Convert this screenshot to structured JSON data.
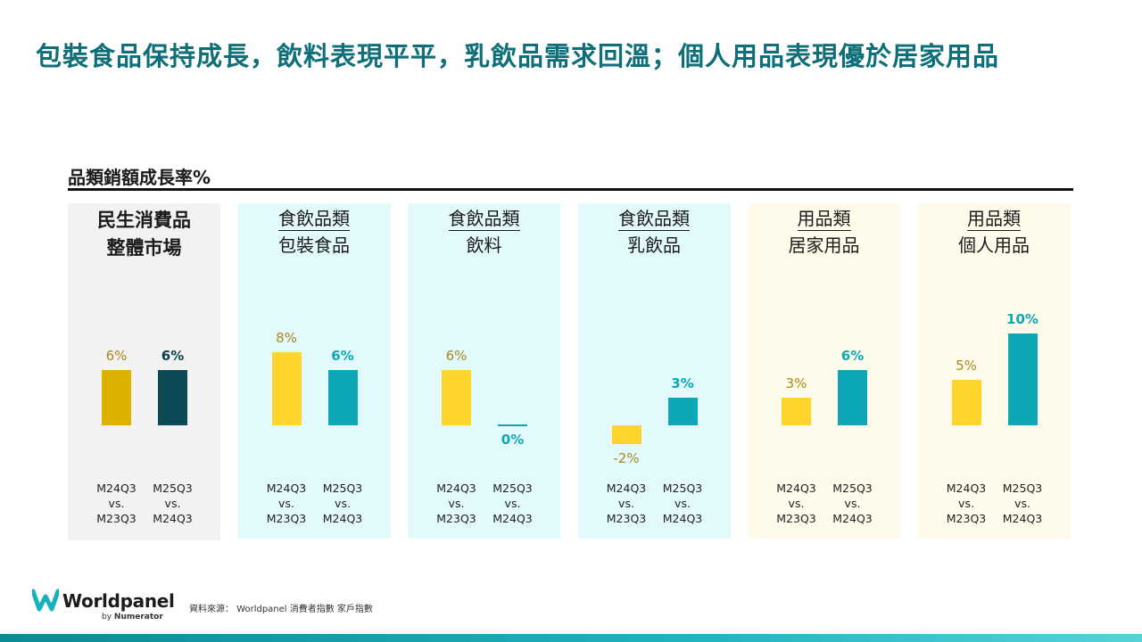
{
  "page": {
    "title": "包裝食品保持成長，飲料表現平平，乳飲品需求回溫；個人用品表現優於居家用品",
    "section_label": "品類銷額成長率%",
    "source_note": "資料來源： Worldpanel 消費者指數 家戶指數"
  },
  "logo": {
    "name": "Worldpanel",
    "by_prefix": "by",
    "by_brand": "Numerator"
  },
  "chart_data": {
    "type": "bar",
    "title": "品類銷額成長率%",
    "unit": "%",
    "x_labels": [
      [
        "M24Q3",
        "vs.",
        "M23Q3"
      ],
      [
        "M25Q3",
        "vs.",
        "M24Q3"
      ]
    ],
    "series_periods": [
      "M24Q3 vs. M23Q3",
      "M25Q3 vs. M24Q3"
    ],
    "panels": [
      {
        "header_line1": "民生消費品",
        "header_line2": "整體市場",
        "underline": false,
        "background": "#f2f2f2",
        "colors": [
          "#deb000",
          "#0c4a57"
        ],
        "label_colors": [
          "#a9871c",
          "#0c3f4a"
        ],
        "values": [
          6,
          6
        ],
        "value_labels": [
          "6%",
          "6%"
        ]
      },
      {
        "header_line1": "食飲品類",
        "header_line2": "包裝食品",
        "underline": true,
        "background": "#e2fafb",
        "colors": [
          "#ffd52b",
          "#0ea7b5"
        ],
        "label_colors": [
          "#a9871c",
          "#0ea7b5"
        ],
        "values": [
          8,
          6
        ],
        "value_labels": [
          "8%",
          "6%"
        ]
      },
      {
        "header_line1": "食飲品類",
        "header_line2": "飲料",
        "underline": true,
        "background": "#e2fafb",
        "colors": [
          "#ffd52b",
          "#0ea7b5"
        ],
        "label_colors": [
          "#a9871c",
          "#0ea7b5"
        ],
        "values": [
          6,
          0
        ],
        "value_labels": [
          "6%",
          "0%"
        ]
      },
      {
        "header_line1": "食飲品類",
        "header_line2": "乳飲品",
        "underline": true,
        "background": "#e2fafb",
        "colors": [
          "#ffd52b",
          "#0ea7b5"
        ],
        "label_colors": [
          "#a9871c",
          "#0ea7b5"
        ],
        "values": [
          -2,
          3
        ],
        "value_labels": [
          "-2%",
          "3%"
        ]
      },
      {
        "header_line1": "用品類",
        "header_line2": "居家用品",
        "underline": true,
        "background": "#fffbea",
        "colors": [
          "#ffd52b",
          "#0ea7b5"
        ],
        "label_colors": [
          "#a9871c",
          "#0ea7b5"
        ],
        "values": [
          3,
          6
        ],
        "value_labels": [
          "3%",
          "6%"
        ]
      },
      {
        "header_line1": "用品類",
        "header_line2": "個人用品",
        "underline": true,
        "background": "#fffbea",
        "colors": [
          "#ffd52b",
          "#0ea7b5"
        ],
        "label_colors": [
          "#a9871c",
          "#0ea7b5"
        ],
        "values": [
          5,
          10
        ],
        "value_labels": [
          "5%",
          "10%"
        ]
      }
    ]
  }
}
